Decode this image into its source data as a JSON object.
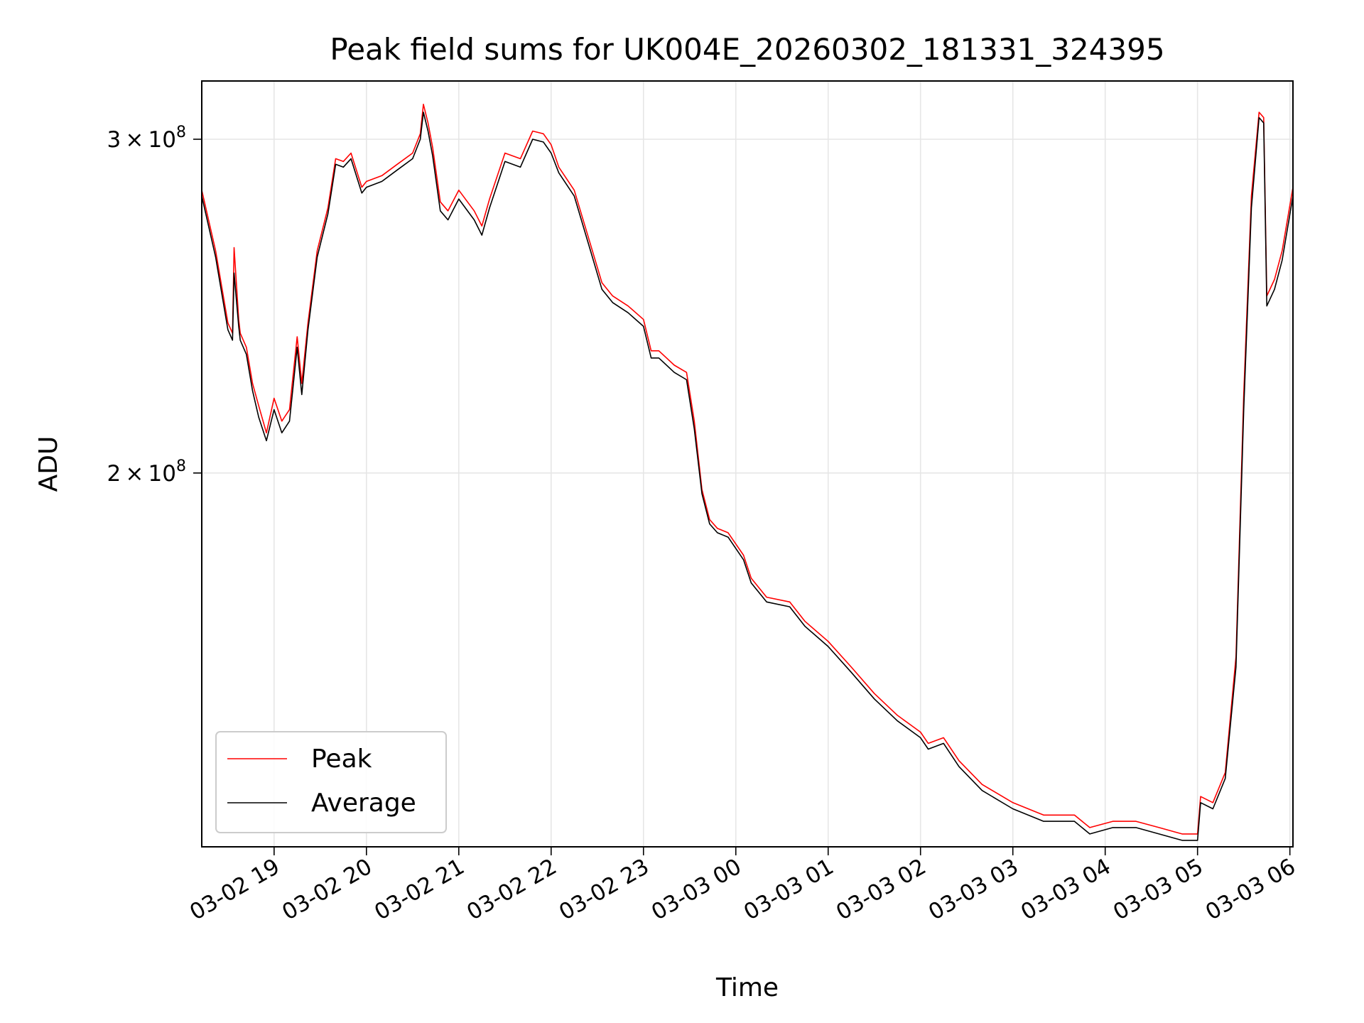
{
  "chart_data": {
    "type": "line",
    "title": "Peak field sums for UK004E_20260302_181331_324395",
    "xlabel": "Time",
    "ylabel": "ADU",
    "yscale": "log",
    "grid": true,
    "legend_position": "lower-left",
    "xlim": [
      "2026-03-02 18:13",
      "2026-03-03 06:02"
    ],
    "ylim": [
      127000000,
      322000000
    ],
    "x_ticks": [
      {
        "value": "2026-03-02 19:00",
        "label": "03-02 19"
      },
      {
        "value": "2026-03-02 20:00",
        "label": "03-02 20"
      },
      {
        "value": "2026-03-02 21:00",
        "label": "03-02 21"
      },
      {
        "value": "2026-03-02 22:00",
        "label": "03-02 22"
      },
      {
        "value": "2026-03-02 23:00",
        "label": "03-02 23"
      },
      {
        "value": "2026-03-03 00:00",
        "label": "03-03 00"
      },
      {
        "value": "2026-03-03 01:00",
        "label": "03-03 01"
      },
      {
        "value": "2026-03-03 02:00",
        "label": "03-03 02"
      },
      {
        "value": "2026-03-03 03:00",
        "label": "03-03 03"
      },
      {
        "value": "2026-03-03 04:00",
        "label": "03-03 04"
      },
      {
        "value": "2026-03-03 05:00",
        "label": "03-03 05"
      },
      {
        "value": "2026-03-03 06:00",
        "label": "03-03 06"
      }
    ],
    "y_ticks": [
      {
        "value": 300000000,
        "mantissa": "3",
        "exponent": "8"
      },
      {
        "value": 200000000,
        "mantissa": "2",
        "exponent": "8"
      }
    ],
    "colors": {
      "Peak": "#ff0000",
      "Average": "#000000"
    },
    "series": [
      {
        "name": "Peak",
        "x": [
          "2026-03-02 18:13",
          "2026-03-02 18:22",
          "2026-03-02 18:30",
          "2026-03-02 18:33",
          "2026-03-02 18:34",
          "2026-03-02 18:37",
          "2026-03-02 18:38",
          "2026-03-02 18:42",
          "2026-03-02 18:46",
          "2026-03-02 18:50",
          "2026-03-02 18:55",
          "2026-03-02 19:00",
          "2026-03-02 19:05",
          "2026-03-02 19:10",
          "2026-03-02 19:15",
          "2026-03-02 19:18",
          "2026-03-02 19:22",
          "2026-03-02 19:28",
          "2026-03-02 19:35",
          "2026-03-02 19:40",
          "2026-03-02 19:45",
          "2026-03-02 19:50",
          "2026-03-02 19:57",
          "2026-03-02 20:00",
          "2026-03-02 20:10",
          "2026-03-02 20:20",
          "2026-03-02 20:30",
          "2026-03-02 20:35",
          "2026-03-02 20:37",
          "2026-03-02 20:40",
          "2026-03-02 20:43",
          "2026-03-02 20:48",
          "2026-03-02 20:53",
          "2026-03-02 21:00",
          "2026-03-02 21:10",
          "2026-03-02 21:15",
          "2026-03-02 21:20",
          "2026-03-02 21:30",
          "2026-03-02 21:40",
          "2026-03-02 21:48",
          "2026-03-02 21:55",
          "2026-03-02 22:00",
          "2026-03-02 22:05",
          "2026-03-02 22:15",
          "2026-03-02 22:25",
          "2026-03-02 22:33",
          "2026-03-02 22:40",
          "2026-03-02 22:50",
          "2026-03-02 23:00",
          "2026-03-02 23:05",
          "2026-03-02 23:10",
          "2026-03-02 23:20",
          "2026-03-02 23:28",
          "2026-03-02 23:33",
          "2026-03-02 23:38",
          "2026-03-02 23:43",
          "2026-03-02 23:48",
          "2026-03-02 23:55",
          "2026-03-03 00:05",
          "2026-03-03 00:10",
          "2026-03-03 00:20",
          "2026-03-03 00:35",
          "2026-03-03 00:45",
          "2026-03-03 01:00",
          "2026-03-03 01:15",
          "2026-03-03 01:30",
          "2026-03-03 01:45",
          "2026-03-03 02:00",
          "2026-03-03 02:05",
          "2026-03-03 02:15",
          "2026-03-03 02:25",
          "2026-03-03 02:40",
          "2026-03-03 03:00",
          "2026-03-03 03:20",
          "2026-03-03 03:40",
          "2026-03-03 03:50",
          "2026-03-03 04:05",
          "2026-03-03 04:20",
          "2026-03-03 04:35",
          "2026-03-03 04:50",
          "2026-03-03 05:00",
          "2026-03-03 05:02",
          "2026-03-03 05:10",
          "2026-03-03 05:18",
          "2026-03-03 05:25",
          "2026-03-03 05:30",
          "2026-03-03 05:35",
          "2026-03-03 05:40",
          "2026-03-03 05:43",
          "2026-03-03 05:45",
          "2026-03-03 05:50",
          "2026-03-03 05:55",
          "2026-03-03 06:02"
        ],
        "y": [
          282000000,
          262000000,
          240000000,
          237000000,
          263000000,
          241000000,
          237000000,
          233000000,
          223000000,
          217000000,
          210000000,
          219000000,
          213000000,
          216000000,
          236000000,
          223000000,
          240000000,
          262000000,
          276000000,
          293000000,
          292000000,
          295000000,
          283000000,
          285000000,
          287000000,
          291000000,
          295000000,
          302000000,
          313000000,
          306000000,
          297000000,
          278000000,
          275000000,
          282000000,
          275000000,
          270000000,
          279000000,
          295000000,
          293000000,
          303000000,
          302000000,
          298000000,
          290000000,
          282000000,
          265000000,
          252000000,
          248000000,
          245000000,
          241000000,
          232000000,
          232000000,
          228000000,
          226000000,
          213000000,
          196000000,
          189000000,
          187000000,
          186000000,
          181000000,
          176000000,
          172000000,
          171000000,
          167000000,
          163000000,
          158000000,
          153000000,
          149000000,
          146000000,
          144000000,
          145000000,
          141000000,
          137000000,
          134000000,
          132000000,
          132000000,
          130000000,
          131000000,
          131000000,
          130000000,
          129000000,
          129000000,
          135000000,
          134000000,
          139000000,
          160000000,
          220000000,
          280000000,
          310000000,
          308000000,
          248000000,
          253000000,
          262000000,
          283000000
        ]
      },
      {
        "name": "Average",
        "x": [
          "2026-03-02 18:13",
          "2026-03-02 18:22",
          "2026-03-02 18:30",
          "2026-03-02 18:33",
          "2026-03-02 18:34",
          "2026-03-02 18:37",
          "2026-03-02 18:38",
          "2026-03-02 18:42",
          "2026-03-02 18:46",
          "2026-03-02 18:50",
          "2026-03-02 18:55",
          "2026-03-02 19:00",
          "2026-03-02 19:05",
          "2026-03-02 19:10",
          "2026-03-02 19:15",
          "2026-03-02 19:18",
          "2026-03-02 19:22",
          "2026-03-02 19:28",
          "2026-03-02 19:35",
          "2026-03-02 19:40",
          "2026-03-02 19:45",
          "2026-03-02 19:50",
          "2026-03-02 19:57",
          "2026-03-02 20:00",
          "2026-03-02 20:10",
          "2026-03-02 20:20",
          "2026-03-02 20:30",
          "2026-03-02 20:35",
          "2026-03-02 20:37",
          "2026-03-02 20:40",
          "2026-03-02 20:43",
          "2026-03-02 20:48",
          "2026-03-02 20:53",
          "2026-03-02 21:00",
          "2026-03-02 21:10",
          "2026-03-02 21:15",
          "2026-03-02 21:20",
          "2026-03-02 21:30",
          "2026-03-02 21:40",
          "2026-03-02 21:48",
          "2026-03-02 21:55",
          "2026-03-02 22:00",
          "2026-03-02 22:05",
          "2026-03-02 22:15",
          "2026-03-02 22:25",
          "2026-03-02 22:33",
          "2026-03-02 22:40",
          "2026-03-02 22:50",
          "2026-03-02 23:00",
          "2026-03-02 23:05",
          "2026-03-02 23:10",
          "2026-03-02 23:20",
          "2026-03-02 23:28",
          "2026-03-02 23:33",
          "2026-03-02 23:38",
          "2026-03-02 23:43",
          "2026-03-02 23:48",
          "2026-03-02 23:55",
          "2026-03-03 00:05",
          "2026-03-03 00:10",
          "2026-03-03 00:20",
          "2026-03-03 00:35",
          "2026-03-03 00:45",
          "2026-03-03 01:00",
          "2026-03-03 01:15",
          "2026-03-03 01:30",
          "2026-03-03 01:45",
          "2026-03-03 02:00",
          "2026-03-03 02:05",
          "2026-03-03 02:15",
          "2026-03-03 02:25",
          "2026-03-03 02:40",
          "2026-03-03 03:00",
          "2026-03-03 03:20",
          "2026-03-03 03:40",
          "2026-03-03 03:50",
          "2026-03-03 04:05",
          "2026-03-03 04:20",
          "2026-03-03 04:35",
          "2026-03-03 04:50",
          "2026-03-03 05:00",
          "2026-03-03 05:02",
          "2026-03-03 05:10",
          "2026-03-03 05:18",
          "2026-03-03 05:25",
          "2026-03-03 05:30",
          "2026-03-03 05:35",
          "2026-03-03 05:40",
          "2026-03-03 05:43",
          "2026-03-03 05:45",
          "2026-03-03 05:50",
          "2026-03-03 05:55",
          "2026-03-03 06:02"
        ],
        "y": [
          280000000,
          260000000,
          238000000,
          235000000,
          255000000,
          239000000,
          235000000,
          231000000,
          221000000,
          214000000,
          208000000,
          216000000,
          210000000,
          213000000,
          233000000,
          220000000,
          238000000,
          260000000,
          274000000,
          291000000,
          290000000,
          293000000,
          281000000,
          283000000,
          285000000,
          289000000,
          293000000,
          300000000,
          310000000,
          303000000,
          294000000,
          275000000,
          272000000,
          279000000,
          272000000,
          267000000,
          276000000,
          292000000,
          290000000,
          300000000,
          299000000,
          295000000,
          288000000,
          280000000,
          263000000,
          250000000,
          246000000,
          243000000,
          239000000,
          230000000,
          230000000,
          226000000,
          224000000,
          211000000,
          195000000,
          188000000,
          186000000,
          185000000,
          180000000,
          175000000,
          171000000,
          170000000,
          166000000,
          162000000,
          157000000,
          152000000,
          148000000,
          145000000,
          143000000,
          144000000,
          140000000,
          136000000,
          133000000,
          131000000,
          131000000,
          129000000,
          130000000,
          130000000,
          129000000,
          128000000,
          128000000,
          134000000,
          133000000,
          138000000,
          158000000,
          216000000,
          276000000,
          308000000,
          306000000,
          245000000,
          250000000,
          259000000,
          280000000
        ]
      }
    ]
  }
}
